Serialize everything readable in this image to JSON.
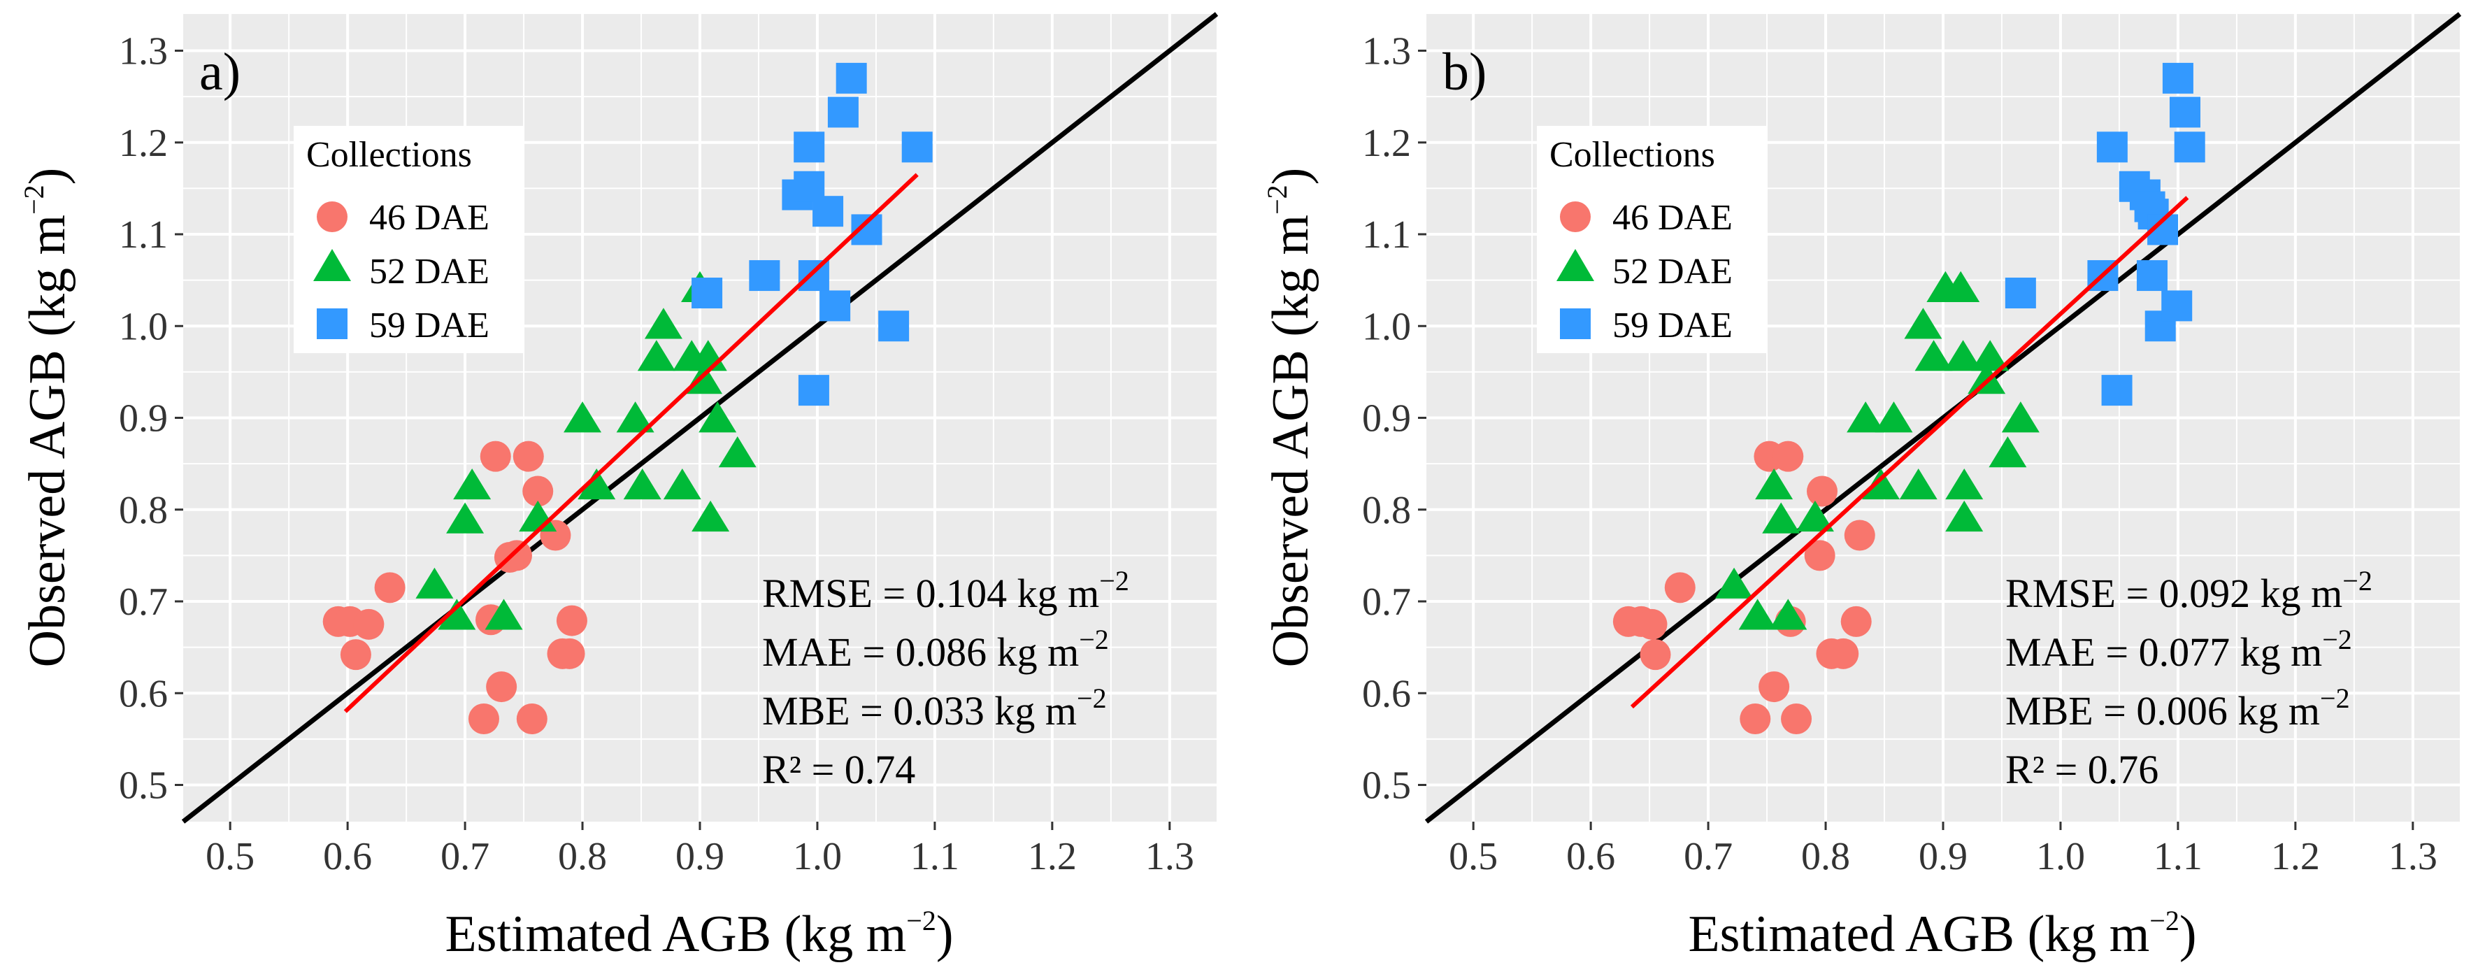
{
  "colors": {
    "panel_bg": "#EBEBEB",
    "grid": "#FFFFFF",
    "dae46": "#F8766D",
    "dae52": "#00BA38",
    "dae59": "#3399FF",
    "fit": "#FF0000",
    "one_to_one": "#000000"
  },
  "chart_data": [
    {
      "type": "scatter",
      "panel_label": "a)",
      "xlabel": "Estimated AGB",
      "ylabel": "Observed AGB",
      "unit_prefix": "(kg m",
      "unit_exp": "−2",
      "unit_suffix": ")",
      "xlim": [
        0.46,
        1.34
      ],
      "ylim": [
        0.46,
        1.34
      ],
      "xticks": [
        "0.5",
        "0.6",
        "0.7",
        "0.8",
        "0.9",
        "1.0",
        "1.1",
        "1.2",
        "1.3"
      ],
      "yticks": [
        "0.5",
        "0.6",
        "0.7",
        "0.8",
        "0.9",
        "1.0",
        "1.1",
        "1.2",
        "1.3"
      ],
      "legend": {
        "title": "Collections",
        "entries": [
          {
            "key": "dae46",
            "label": "46 DAE",
            "shape": "circle"
          },
          {
            "key": "dae52",
            "label": "52 DAE",
            "shape": "triangle"
          },
          {
            "key": "dae59",
            "label": "59 DAE",
            "shape": "square"
          }
        ]
      },
      "series": [
        {
          "key": "dae46",
          "name": "46 DAE",
          "shape": "circle",
          "points": [
            [
              0.592,
              0.678
            ],
            [
              0.602,
              0.678
            ],
            [
              0.607,
              0.642
            ],
            [
              0.618,
              0.675
            ],
            [
              0.636,
              0.715
            ],
            [
              0.716,
              0.572
            ],
            [
              0.722,
              0.68
            ],
            [
              0.726,
              0.858
            ],
            [
              0.731,
              0.607
            ],
            [
              0.738,
              0.748
            ],
            [
              0.744,
              0.75
            ],
            [
              0.754,
              0.858
            ],
            [
              0.757,
              0.572
            ],
            [
              0.762,
              0.82
            ],
            [
              0.777,
              0.772
            ],
            [
              0.783,
              0.643
            ],
            [
              0.789,
              0.643
            ],
            [
              0.791,
              0.679
            ]
          ]
        },
        {
          "key": "dae52",
          "name": "52 DAE",
          "shape": "triangle",
          "points": [
            [
              0.674,
              0.717
            ],
            [
              0.693,
              0.683
            ],
            [
              0.7,
              0.788
            ],
            [
              0.706,
              0.825
            ],
            [
              0.733,
              0.683
            ],
            [
              0.762,
              0.79
            ],
            [
              0.8,
              0.898
            ],
            [
              0.812,
              0.825
            ],
            [
              0.845,
              0.898
            ],
            [
              0.851,
              0.825
            ],
            [
              0.863,
              0.965
            ],
            [
              0.869,
              1.0
            ],
            [
              0.885,
              0.825
            ],
            [
              0.893,
              0.965
            ],
            [
              0.9,
              1.04
            ],
            [
              0.903,
              0.94
            ],
            [
              0.907,
              0.965
            ],
            [
              0.909,
              0.79
            ],
            [
              0.915,
              0.898
            ],
            [
              0.932,
              0.86
            ]
          ]
        },
        {
          "key": "dae59",
          "name": "59 DAE",
          "shape": "square",
          "points": [
            [
              0.906,
              1.036
            ],
            [
              0.955,
              1.055
            ],
            [
              0.983,
              1.143
            ],
            [
              0.993,
              1.152
            ],
            [
              0.993,
              1.195
            ],
            [
              0.997,
              1.055
            ],
            [
              0.997,
              0.93
            ],
            [
              1.009,
              1.125
            ],
            [
              1.015,
              1.022
            ],
            [
              1.022,
              1.233
            ],
            [
              1.029,
              1.27
            ],
            [
              1.042,
              1.105
            ],
            [
              1.065,
              1.0
            ],
            [
              1.085,
              1.195
            ]
          ]
        }
      ],
      "fit_line": {
        "x": [
          0.598,
          1.085
        ],
        "y": [
          0.58,
          1.165
        ]
      },
      "one_to_one": true,
      "stats": {
        "rmse_prefix": "RMSE = 0.104 kg m",
        "mae_prefix": "MAE = 0.086 kg m",
        "mbe_prefix": "MBE = 0.033 kg m",
        "exp": "−2",
        "r2": "R² = 0.74"
      }
    },
    {
      "type": "scatter",
      "panel_label": "b)",
      "xlabel": "Estimated AGB",
      "ylabel": "Observed AGB",
      "unit_prefix": "(kg m",
      "unit_exp": "−2",
      "unit_suffix": ")",
      "xlim": [
        0.46,
        1.34
      ],
      "ylim": [
        0.46,
        1.34
      ],
      "xticks": [
        "0.5",
        "0.6",
        "0.7",
        "0.8",
        "0.9",
        "1.0",
        "1.1",
        "1.2",
        "1.3"
      ],
      "yticks": [
        "0.5",
        "0.6",
        "0.7",
        "0.8",
        "0.9",
        "1.0",
        "1.1",
        "1.2",
        "1.3"
      ],
      "legend": {
        "title": "Collections",
        "entries": [
          {
            "key": "dae46",
            "label": "46 DAE",
            "shape": "circle"
          },
          {
            "key": "dae52",
            "label": "52 DAE",
            "shape": "triangle"
          },
          {
            "key": "dae59",
            "label": "59 DAE",
            "shape": "square"
          }
        ]
      },
      "series": [
        {
          "key": "dae46",
          "name": "46 DAE",
          "shape": "circle",
          "points": [
            [
              0.632,
              0.678
            ],
            [
              0.643,
              0.678
            ],
            [
              0.652,
              0.675
            ],
            [
              0.655,
              0.642
            ],
            [
              0.676,
              0.715
            ],
            [
              0.74,
              0.572
            ],
            [
              0.752,
              0.858
            ],
            [
              0.756,
              0.607
            ],
            [
              0.768,
              0.858
            ],
            [
              0.77,
              0.678
            ],
            [
              0.775,
              0.572
            ],
            [
              0.795,
              0.75
            ],
            [
              0.797,
              0.82
            ],
            [
              0.805,
              0.643
            ],
            [
              0.815,
              0.643
            ],
            [
              0.826,
              0.678
            ],
            [
              0.829,
              0.772
            ]
          ]
        },
        {
          "key": "dae52",
          "name": "52 DAE",
          "shape": "triangle",
          "points": [
            [
              0.722,
              0.717
            ],
            [
              0.742,
              0.683
            ],
            [
              0.756,
              0.825
            ],
            [
              0.762,
              0.788
            ],
            [
              0.768,
              0.683
            ],
            [
              0.791,
              0.79
            ],
            [
              0.834,
              0.898
            ],
            [
              0.847,
              0.825
            ],
            [
              0.858,
              0.898
            ],
            [
              0.879,
              0.825
            ],
            [
              0.883,
              1.0
            ],
            [
              0.892,
              0.965
            ],
            [
              0.902,
              1.04
            ],
            [
              0.915,
              1.04
            ],
            [
              0.917,
              0.965
            ],
            [
              0.918,
              0.825
            ],
            [
              0.918,
              0.79
            ],
            [
              0.937,
              0.94
            ],
            [
              0.94,
              0.965
            ],
            [
              0.955,
              0.86
            ],
            [
              0.966,
              0.898
            ]
          ]
        },
        {
          "key": "dae59",
          "name": "59 DAE",
          "shape": "square",
          "points": [
            [
              0.966,
              1.036
            ],
            [
              1.036,
              1.055
            ],
            [
              1.044,
              1.195
            ],
            [
              1.048,
              0.93
            ],
            [
              1.063,
              1.152
            ],
            [
              1.072,
              1.143
            ],
            [
              1.076,
              1.13
            ],
            [
              1.078,
              1.055
            ],
            [
              1.079,
              1.122
            ],
            [
              1.085,
              1.0
            ],
            [
              1.087,
              1.105
            ],
            [
              1.099,
              1.022
            ],
            [
              1.1,
              1.27
            ],
            [
              1.106,
              1.233
            ],
            [
              1.11,
              1.195
            ]
          ]
        }
      ],
      "fit_line": {
        "x": [
          0.635,
          1.108
        ],
        "y": [
          0.585,
          1.14
        ]
      },
      "one_to_one": true,
      "stats": {
        "rmse_prefix": "RMSE = 0.092 kg m",
        "mae_prefix": "MAE = 0.077 kg m",
        "mbe_prefix": "MBE = 0.006 kg m",
        "exp": "−2",
        "r2": "R² = 0.76"
      }
    }
  ]
}
